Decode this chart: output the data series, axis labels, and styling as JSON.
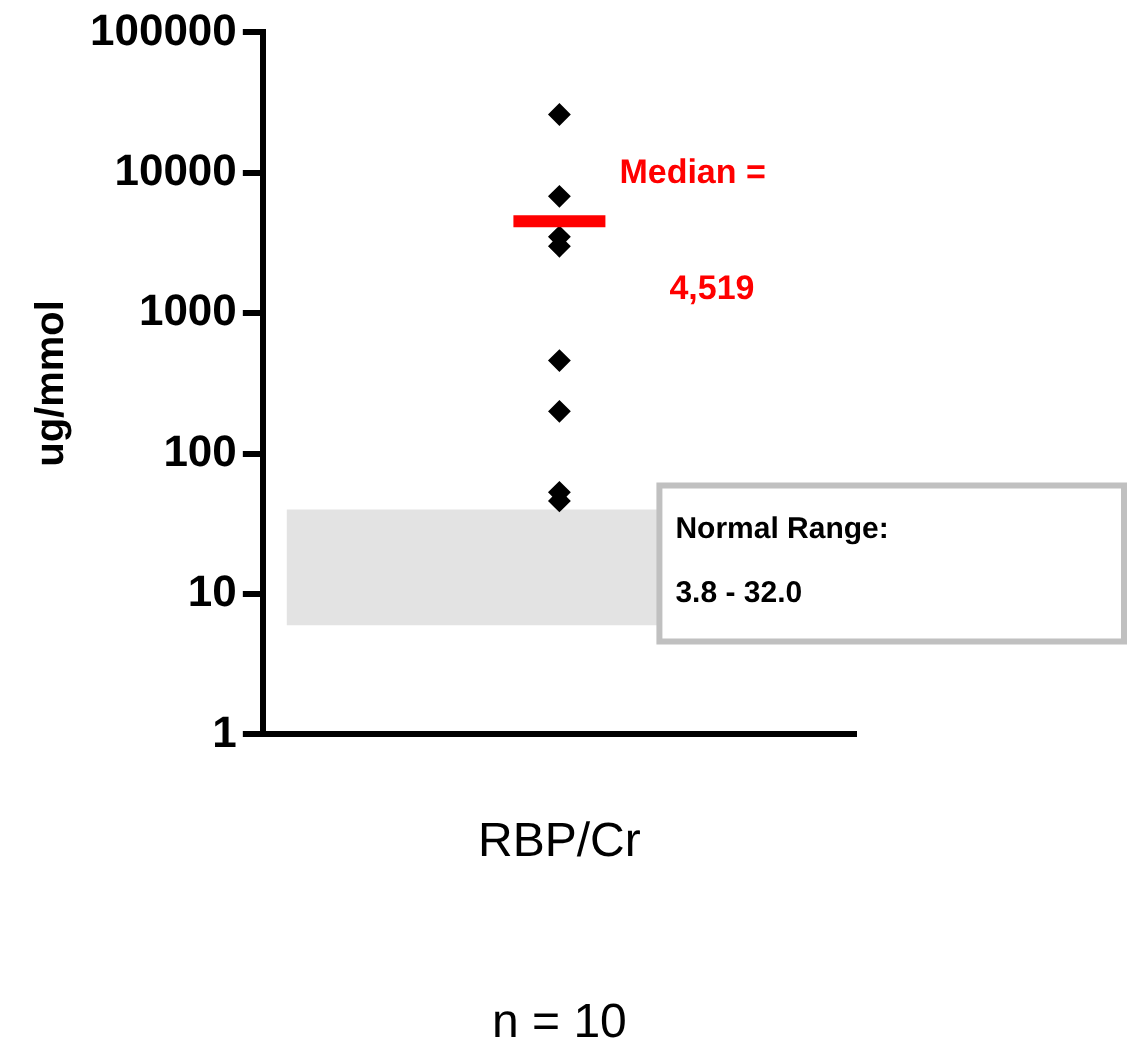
{
  "chart_data": {
    "type": "scatter",
    "ylabel": "ug/mmol",
    "categories": [
      "RBP/Cr"
    ],
    "series": [
      {
        "color": "#000000",
        "x": [
          "RBP/Cr",
          "RBP/Cr",
          "RBP/Cr",
          "RBP/Cr",
          "RBP/Cr",
          "RBP/Cr",
          "RBP/Cr",
          "RBP/Cr",
          "RBP/Cr",
          "RBP/Cr"
        ],
        "values": [
          26000,
          null,
          6800,
          3500,
          3000,
          460,
          null,
          200,
          53,
          46
        ]
      }
    ],
    "log": "y",
    "ylim": [
      1,
      100000
    ],
    "yticks": [
      1,
      10,
      100,
      1000,
      10000,
      100000
    ],
    "grid": false,
    "legend": false,
    "marker": "diamond",
    "ref_lines": [
      {
        "axis": "y",
        "value": 4519,
        "label": "Median = 4,519",
        "color": "#ff0000"
      }
    ],
    "bands": [
      {
        "axis": "y",
        "from": 6,
        "to": 40,
        "label": "Normal Range: 3.8 - 32.0",
        "color": "#c0c0c0"
      }
    ],
    "annotations": [
      "n = 10"
    ]
  }
}
